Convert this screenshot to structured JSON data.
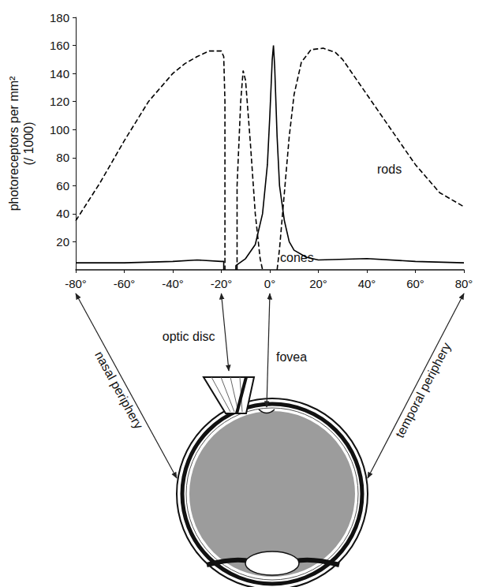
{
  "chart_data": {
    "type": "line",
    "ylabel": "photoreceptors per mm²\n(/ 1000)",
    "xlim": [
      -80,
      80
    ],
    "xticks": [
      {
        "value": -80,
        "label": "-80°"
      },
      {
        "value": -60,
        "label": "-60°"
      },
      {
        "value": -40,
        "label": "-40°"
      },
      {
        "value": -20,
        "label": "-20°"
      },
      {
        "value": 0,
        "label": "0°"
      },
      {
        "value": 20,
        "label": "20°"
      },
      {
        "value": 40,
        "label": "40°"
      },
      {
        "value": 60,
        "label": "60°"
      },
      {
        "value": 80,
        "label": "80°"
      }
    ],
    "ylim": [
      0,
      180
    ],
    "yticks": [
      20,
      40,
      60,
      80,
      100,
      120,
      140,
      160,
      180
    ],
    "grid": false,
    "series": [
      {
        "name": "rods",
        "color": "#000000",
        "line_style": "dashed",
        "x": [
          -80,
          -70,
          -60,
          -50,
          -40,
          -35,
          -30,
          -25,
          -20,
          -19,
          -18.5,
          -18.5,
          -16,
          -13.5,
          -13.5,
          -12,
          -11,
          -10,
          -8,
          -6,
          -4,
          -3,
          0,
          3,
          4,
          6,
          8,
          10,
          13,
          17,
          22,
          27,
          30,
          40,
          50,
          60,
          70,
          80
        ],
        "values": [
          35,
          62,
          92,
          120,
          140,
          147,
          152,
          156,
          156,
          152,
          120,
          0,
          null,
          0,
          60,
          120,
          142,
          135,
          90,
          40,
          8,
          0,
          null,
          0,
          15,
          55,
          95,
          125,
          148,
          157,
          158,
          155,
          150,
          125,
          100,
          75,
          55,
          45
        ]
      },
      {
        "name": "cones",
        "color": "#000000",
        "line_style": "solid",
        "x": [
          -80,
          -60,
          -40,
          -30,
          -20,
          -19,
          -19,
          -16,
          -14,
          -14,
          -10,
          -6,
          -3,
          -1,
          0,
          1,
          1.5,
          2,
          3,
          4,
          6,
          8,
          10,
          15,
          20,
          40,
          60,
          80
        ],
        "values": [
          5,
          5,
          6,
          7,
          6,
          6,
          0,
          null,
          0,
          3,
          8,
          18,
          40,
          75,
          110,
          150,
          160,
          145,
          95,
          60,
          35,
          20,
          14,
          9,
          7,
          8,
          6,
          5
        ]
      }
    ],
    "annotations": [
      "optic disc",
      "fovea",
      "nasal periphery",
      "temporal periphery"
    ]
  }
}
